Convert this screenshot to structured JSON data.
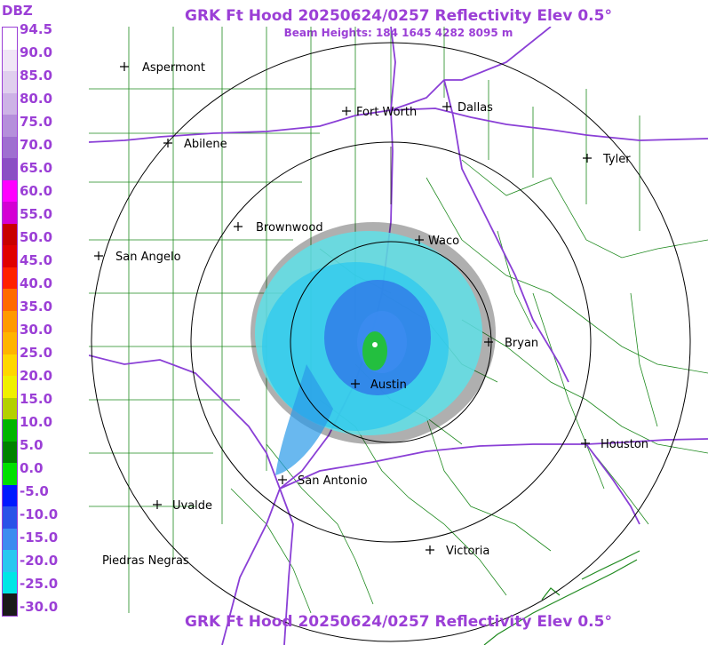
{
  "title": "GRK Ft Hood 20250624/0257 Reflectivity Elev 0.5°",
  "subtitle": "Beam Heights: 184 1645 4282 8095 m",
  "legend": {
    "header": "DBZ",
    "labels": [
      "94.5",
      "90.0",
      "85.0",
      "80.0",
      "75.0",
      "70.0",
      "65.0",
      "60.0",
      "55.0",
      "50.0",
      "45.0",
      "40.0",
      "35.0",
      "30.0",
      "25.0",
      "20.0",
      "15.0",
      "10.0",
      "5.0",
      "0.0",
      "-5.0",
      "-10.0",
      "-15.0",
      "-20.0",
      "-25.0",
      "-30.0"
    ],
    "colors": [
      "#ffffff",
      "#f0e6f6",
      "#e0cfee",
      "#cdb3e6",
      "#b58fdb",
      "#9f6fd0",
      "#8b4fc4",
      "#ff00ff",
      "#d400d4",
      "#c80000",
      "#e00000",
      "#ff2000",
      "#ff6a00",
      "#ff9a00",
      "#ffb400",
      "#ffd700",
      "#f0f000",
      "#b4d000",
      "#00b400",
      "#008200",
      "#00e000",
      "#0018ff",
      "#2a52e8",
      "#3c8cf0",
      "#28c8f0",
      "#00e6e6",
      "#1a1a1a"
    ]
  },
  "cities": [
    {
      "name": "Aspermont"
    },
    {
      "name": "Fort Worth"
    },
    {
      "name": "Dallas"
    },
    {
      "name": "Abilene"
    },
    {
      "name": "Tyler"
    },
    {
      "name": "Brownwood"
    },
    {
      "name": "Waco"
    },
    {
      "name": "San Angelo"
    },
    {
      "name": "Bryan"
    },
    {
      "name": "Austin"
    },
    {
      "name": "Houston"
    },
    {
      "name": "San Antonio"
    },
    {
      "name": "Uvalde"
    },
    {
      "name": "Victoria"
    },
    {
      "name": "Piedras Negras"
    }
  ],
  "colors": {
    "title": "#9b3fd6",
    "county_lines": "#1f8a1f",
    "highways": "#8a3fd6",
    "range_rings": "#000000"
  }
}
